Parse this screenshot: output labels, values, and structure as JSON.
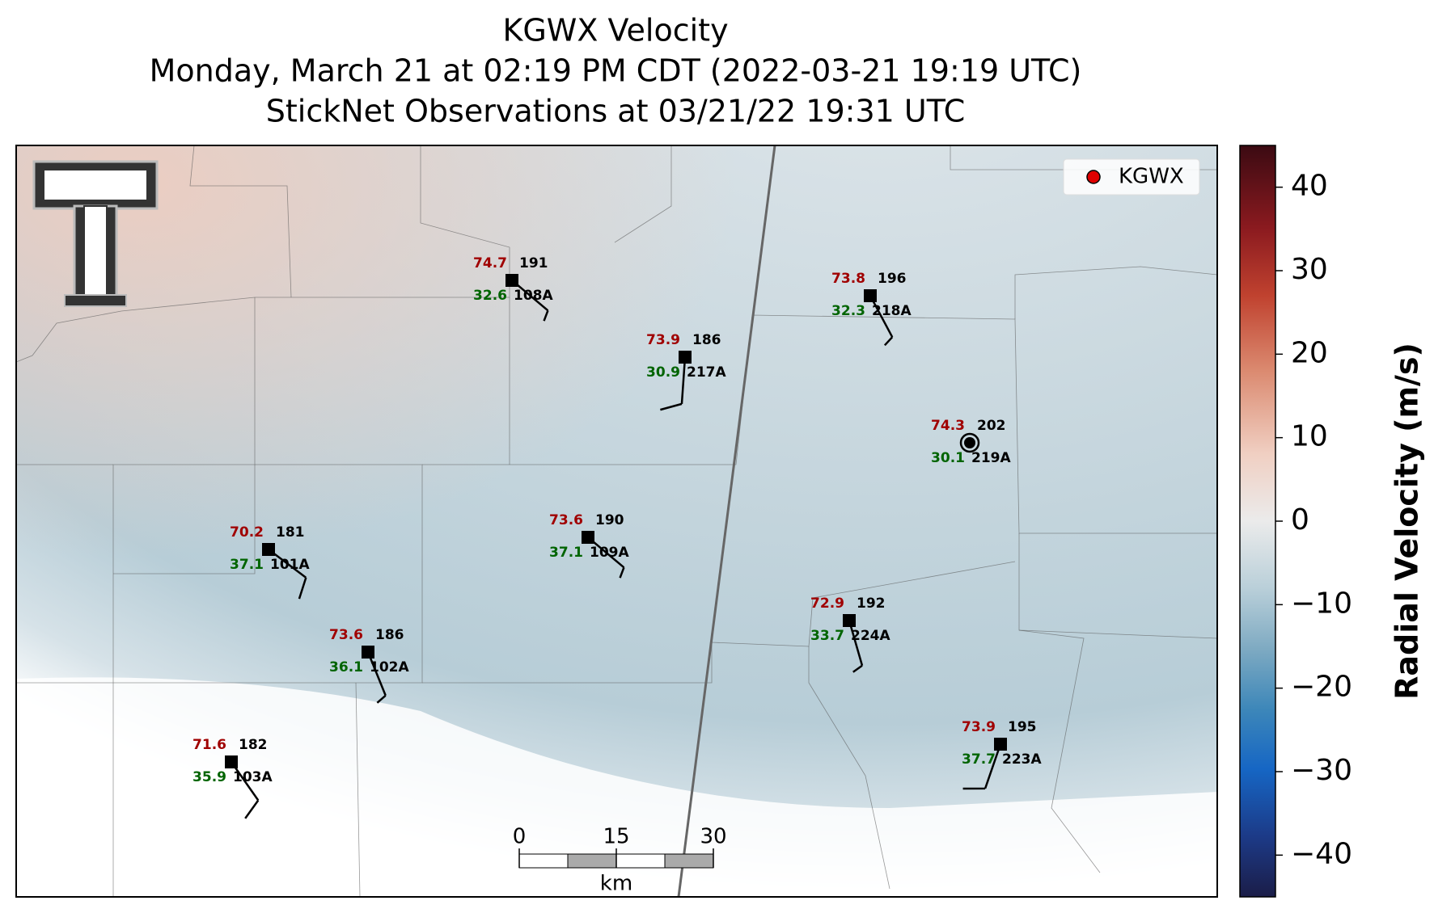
{
  "title": [
    "KGWX Velocity",
    "Monday, March 21 at 02:19 PM CDT (2022-03-21 19:19 UTC)",
    "StickNet Observations at 03/21/22 19:31 UTC"
  ],
  "legend": {
    "label": "KGWX",
    "color": "#e00000",
    "loc": "upper right"
  },
  "colorbar": {
    "label": "Radial Velocity (m/s)",
    "lim": [
      -45,
      45
    ],
    "ticks": [
      40,
      30,
      20,
      10,
      0,
      {
        "value": -10,
        "label": "−10"
      },
      {
        "value": -20,
        "label": "−20"
      },
      {
        "value": -30,
        "label": "−30"
      },
      {
        "value": -40,
        "label": "−40"
      }
    ]
  },
  "scale_bar": {
    "ticks": [
      0,
      15,
      30
    ],
    "unit": "km"
  },
  "stations": [
    {
      "id": "108A",
      "temperature": 74.7,
      "dewpoint": 32.6,
      "pressure": 191,
      "wind_direction": 130,
      "wind_speed": 5
    },
    {
      "id": "217A",
      "temperature": 73.9,
      "dewpoint": 30.9,
      "pressure": 186,
      "wind_direction": 184,
      "wind_speed": 10
    },
    {
      "id": "218A",
      "temperature": 73.8,
      "dewpoint": 32.3,
      "pressure": 196,
      "wind_direction": 152,
      "wind_speed": 5
    },
    {
      "id": "219A",
      "temperature": 74.3,
      "dewpoint": 30.1,
      "pressure": 202,
      "wind_direction": 0,
      "wind_speed": 0
    },
    {
      "id": "109A",
      "temperature": 73.6,
      "dewpoint": 37.1,
      "pressure": 190,
      "wind_direction": 130,
      "wind_speed": 5
    },
    {
      "id": "101A",
      "temperature": 70.2,
      "dewpoint": 37.1,
      "pressure": 181,
      "wind_direction": 127,
      "wind_speed": 10
    },
    {
      "id": "102A",
      "temperature": 73.6,
      "dewpoint": 36.1,
      "pressure": 186,
      "wind_direction": 158,
      "wind_speed": 5
    },
    {
      "id": "224A",
      "temperature": 72.9,
      "dewpoint": 33.7,
      "pressure": 192,
      "wind_direction": 164,
      "wind_speed": 5
    },
    {
      "id": "103A",
      "temperature": 71.6,
      "dewpoint": 35.9,
      "pressure": 182,
      "wind_direction": 145,
      "wind_speed": 10
    },
    {
      "id": "223A",
      "temperature": 73.9,
      "dewpoint": 37.7,
      "pressure": 195,
      "wind_direction": 199,
      "wind_speed": 10
    }
  ]
}
